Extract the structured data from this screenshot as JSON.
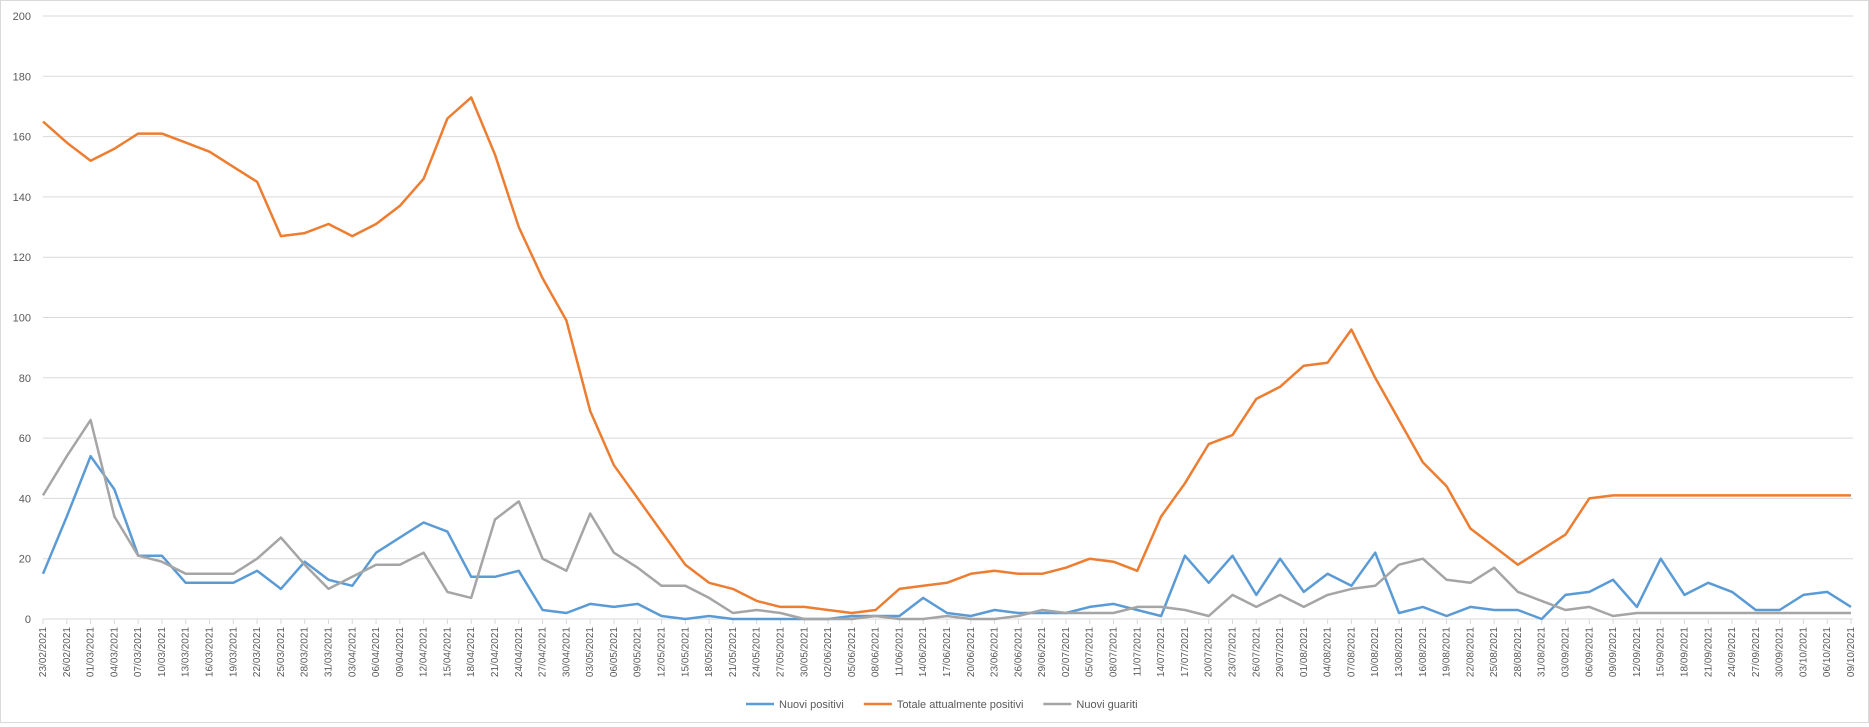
{
  "chart_data": {
    "type": "line",
    "title": "",
    "xlabel": "",
    "ylabel": "",
    "ylim": [
      0,
      200
    ],
    "yticks": [
      0,
      20,
      40,
      60,
      80,
      100,
      120,
      140,
      160,
      180,
      200
    ],
    "grid": true,
    "legend_position": "bottom",
    "x": [
      "23/02/2021",
      "26/02/2021",
      "01/03/2021",
      "04/03/2021",
      "07/03/2021",
      "10/03/2021",
      "13/03/2021",
      "16/03/2021",
      "19/03/2021",
      "22/03/2021",
      "25/03/2021",
      "28/03/2021",
      "31/03/2021",
      "03/04/2021",
      "06/04/2021",
      "09/04/2021",
      "12/04/2021",
      "15/04/2021",
      "18/04/2021",
      "21/04/2021",
      "24/04/2021",
      "27/04/2021",
      "30/04/2021",
      "03/05/2021",
      "06/05/2021",
      "09/05/2021",
      "12/05/2021",
      "15/05/2021",
      "18/05/2021",
      "21/05/2021",
      "24/05/2021",
      "27/05/2021",
      "30/05/2021",
      "02/06/2021",
      "05/06/2021",
      "08/06/2021",
      "11/06/2021",
      "14/06/2021",
      "17/06/2021",
      "20/06/2021",
      "23/06/2021",
      "26/06/2021",
      "29/06/2021",
      "02/07/2021",
      "05/07/2021",
      "08/07/2021",
      "11/07/2021",
      "14/07/2021",
      "17/07/2021",
      "20/07/2021",
      "23/07/2021",
      "26/07/2021",
      "29/07/2021",
      "01/08/2021",
      "04/08/2021",
      "07/08/2021",
      "10/08/2021",
      "13/08/2021",
      "16/08/2021",
      "19/08/2021",
      "22/08/2021",
      "25/08/2021",
      "28/08/2021",
      "31/08/2021",
      "03/09/2021",
      "06/09/2021",
      "09/09/2021",
      "12/09/2021",
      "15/09/2021",
      "18/09/2021",
      "21/09/2021",
      "24/09/2021",
      "27/09/2021",
      "30/09/2021",
      "03/10/2021",
      "06/10/2021",
      "09/10/2021"
    ],
    "series": [
      {
        "name": "Nuovi positivi",
        "color": "#5b9bd5",
        "values": [
          15,
          34,
          54,
          43,
          21,
          21,
          12,
          12,
          12,
          16,
          10,
          19,
          13,
          11,
          22,
          27,
          32,
          29,
          14,
          14,
          16,
          3,
          2,
          5,
          4,
          5,
          1,
          0,
          1,
          0,
          0,
          0,
          0,
          0,
          1,
          1,
          1,
          7,
          2,
          1,
          3,
          2,
          2,
          2,
          4,
          5,
          3,
          1,
          21,
          12,
          21,
          8,
          20,
          9,
          15,
          11,
          22,
          2,
          4,
          1,
          4,
          3,
          3,
          0,
          8,
          9,
          13,
          4,
          20,
          8,
          12,
          9,
          3,
          3,
          8,
          9,
          4
        ]
      },
      {
        "name": "Totale attualmente positivi",
        "color": "#ed7d31",
        "values": [
          165,
          158,
          152,
          156,
          161,
          161,
          158,
          155,
          150,
          145,
          127,
          128,
          131,
          127,
          131,
          137,
          146,
          166,
          173,
          154,
          130,
          113,
          99,
          69,
          51,
          40,
          29,
          18,
          12,
          10,
          6,
          4,
          4,
          3,
          2,
          3,
          10,
          11,
          12,
          15,
          16,
          15,
          15,
          17,
          20,
          19,
          16,
          34,
          45,
          58,
          61,
          73,
          77,
          84,
          85,
          96,
          80,
          66,
          52,
          44,
          30,
          24,
          18,
          23,
          28,
          40,
          41,
          41,
          41,
          41,
          41,
          41,
          41,
          41,
          41,
          41,
          41
        ]
      },
      {
        "name": "Nuovi guariti",
        "color": "#a5a5a5",
        "values": [
          41,
          54,
          66,
          34,
          21,
          19,
          15,
          15,
          15,
          20,
          27,
          18,
          10,
          14,
          18,
          18,
          22,
          9,
          7,
          33,
          39,
          20,
          16,
          35,
          22,
          17,
          11,
          11,
          7,
          2,
          3,
          2,
          0,
          0,
          0,
          1,
          0,
          0,
          1,
          0,
          0,
          1,
          3,
          2,
          2,
          2,
          4,
          4,
          3,
          1,
          8,
          4,
          8,
          4,
          8,
          10,
          11,
          18,
          20,
          13,
          12,
          17,
          9,
          6,
          3,
          4,
          1,
          2,
          2,
          2,
          2,
          2,
          2,
          2,
          2,
          2,
          2
        ]
      }
    ]
  }
}
